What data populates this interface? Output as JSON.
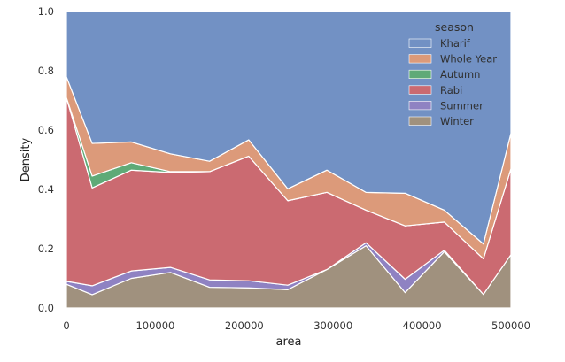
{
  "chart_data": {
    "type": "area",
    "stacked": true,
    "normalized": true,
    "xlabel": "area",
    "ylabel": "Density",
    "xlim": [
      0,
      500000
    ],
    "ylim": [
      0,
      1.0
    ],
    "x_ticks": [
      0,
      100000,
      200000,
      300000,
      400000,
      500000
    ],
    "x_tick_labels": [
      "0",
      "100000",
      "200000",
      "300000",
      "400000",
      "500000"
    ],
    "y_ticks": [
      0,
      0.2,
      0.4,
      0.6,
      0.8,
      1.0
    ],
    "y_tick_labels": [
      "0.0",
      "0.2",
      "0.4",
      "0.6",
      "0.8",
      "1.0"
    ],
    "grid": false,
    "legend": {
      "title": "season",
      "placement": "top-right"
    },
    "x": [
      0,
      29000,
      73000,
      117000,
      161000,
      205000,
      249000,
      293000,
      337000,
      381000,
      425000,
      469000,
      500000
    ],
    "series": [
      {
        "name": "Winter",
        "color": "#a0917e",
        "values": [
          0.08,
          0.045,
          0.1,
          0.12,
          0.07,
          0.068,
          0.062,
          0.13,
          0.21,
          0.052,
          0.19,
          0.046,
          0.18
        ]
      },
      {
        "name": "Summer",
        "color": "#8f82c2",
        "values": [
          0.01,
          0.03,
          0.025,
          0.017,
          0.025,
          0.024,
          0.015,
          0.0,
          0.01,
          0.045,
          0.005,
          0.0,
          0.0
        ]
      },
      {
        "name": "Rabi",
        "color": "#cb6a71",
        "values": [
          0.62,
          0.33,
          0.34,
          0.32,
          0.365,
          0.42,
          0.285,
          0.26,
          0.11,
          0.18,
          0.095,
          0.12,
          0.29
        ]
      },
      {
        "name": "Autumn",
        "color": "#5faa77",
        "values": [
          0.0,
          0.04,
          0.025,
          0.003,
          0.0,
          0.0,
          0.0,
          0.0,
          0.0,
          0.0,
          0.0,
          0.0,
          0.0
        ]
      },
      {
        "name": "Whole Year",
        "color": "#dc9a7a",
        "values": [
          0.07,
          0.11,
          0.07,
          0.06,
          0.035,
          0.055,
          0.04,
          0.075,
          0.06,
          0.11,
          0.04,
          0.05,
          0.12
        ]
      },
      {
        "name": "Kharif",
        "color": "#7291c4",
        "values": [
          0.22,
          0.445,
          0.44,
          0.48,
          0.505,
          0.433,
          0.598,
          0.535,
          0.61,
          0.613,
          0.67,
          0.784,
          0.41
        ]
      }
    ],
    "legend_order": [
      "Kharif",
      "Whole Year",
      "Autumn",
      "Rabi",
      "Summer",
      "Winter"
    ]
  }
}
